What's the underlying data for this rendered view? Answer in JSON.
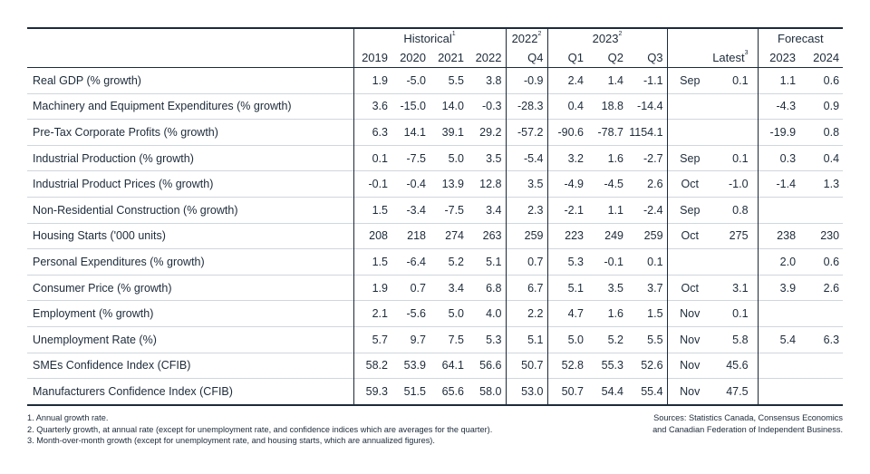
{
  "header": {
    "historical": "Historical",
    "historical_sup": "1",
    "y2022": "2022",
    "y2022_sup": "2",
    "y2023": "2023",
    "y2023_sup": "2",
    "latest": "Latest",
    "latest_sup": "3",
    "forecast": "Forecast",
    "cols": [
      "2019",
      "2020",
      "2021",
      "2022",
      "Q4",
      "Q1",
      "Q2",
      "Q3",
      "2023",
      "2024"
    ]
  },
  "rows": [
    {
      "label": "Real GDP (% growth)",
      "h": [
        "1.9",
        "-5.0",
        "5.5",
        "3.8"
      ],
      "q4": "-0.9",
      "q": [
        "2.4",
        "1.4",
        "-1.1"
      ],
      "lm": "Sep",
      "lv": "0.1",
      "f": [
        "1.1",
        "0.6"
      ]
    },
    {
      "label": "Machinery and Equipment Expenditures (% growth)",
      "h": [
        "3.6",
        "-15.0",
        "14.0",
        "-0.3"
      ],
      "q4": "-28.3",
      "q": [
        "0.4",
        "18.8",
        "-14.4"
      ],
      "lm": "",
      "lv": "",
      "f": [
        "-4.3",
        "0.9"
      ]
    },
    {
      "label": "Pre-Tax Corporate Profits (% growth)",
      "h": [
        "6.3",
        "14.1",
        "39.1",
        "29.2"
      ],
      "q4": "-57.2",
      "q": [
        "-90.6",
        "-78.7",
        "1154.1"
      ],
      "lm": "",
      "lv": "",
      "f": [
        "-19.9",
        "0.8"
      ]
    },
    {
      "label": "Industrial Production (% growth)",
      "h": [
        "0.1",
        "-7.5",
        "5.0",
        "3.5"
      ],
      "q4": "-5.4",
      "q": [
        "3.2",
        "1.6",
        "-2.7"
      ],
      "lm": "Sep",
      "lv": "0.1",
      "f": [
        "0.3",
        "0.4"
      ]
    },
    {
      "label": "Industrial Product Prices (% growth)",
      "h": [
        "-0.1",
        "-0.4",
        "13.9",
        "12.8"
      ],
      "q4": "3.5",
      "q": [
        "-4.9",
        "-4.5",
        "2.6"
      ],
      "lm": "Oct",
      "lv": "-1.0",
      "f": [
        "-1.4",
        "1.3"
      ]
    },
    {
      "label": "Non-Residential Construction (% growth)",
      "h": [
        "1.5",
        "-3.4",
        "-7.5",
        "3.4"
      ],
      "q4": "2.3",
      "q": [
        "-2.1",
        "1.1",
        "-2.4"
      ],
      "lm": "Sep",
      "lv": "0.8",
      "f": [
        "",
        ""
      ]
    },
    {
      "label": "Housing Starts ('000 units)",
      "h": [
        "208",
        "218",
        "274",
        "263"
      ],
      "q4": "259",
      "q": [
        "223",
        "249",
        "259"
      ],
      "lm": "Oct",
      "lv": "275",
      "f": [
        "238",
        "230"
      ]
    },
    {
      "label": "Personal Expenditures (% growth)",
      "h": [
        "1.5",
        "-6.4",
        "5.2",
        "5.1"
      ],
      "q4": "0.7",
      "q": [
        "5.3",
        "-0.1",
        "0.1"
      ],
      "lm": "",
      "lv": "",
      "f": [
        "2.0",
        "0.6"
      ]
    },
    {
      "label": "Consumer Price (% growth)",
      "h": [
        "1.9",
        "0.7",
        "3.4",
        "6.8"
      ],
      "q4": "6.7",
      "q": [
        "5.1",
        "3.5",
        "3.7"
      ],
      "lm": "Oct",
      "lv": "3.1",
      "f": [
        "3.9",
        "2.6"
      ]
    },
    {
      "label": "Employment (% growth)",
      "h": [
        "2.1",
        "-5.6",
        "5.0",
        "4.0"
      ],
      "q4": "2.2",
      "q": [
        "4.7",
        "1.6",
        "1.5"
      ],
      "lm": "Nov",
      "lv": "0.1",
      "f": [
        "",
        ""
      ]
    },
    {
      "label": "Unemployment Rate (%)",
      "h": [
        "5.7",
        "9.7",
        "7.5",
        "5.3"
      ],
      "q4": "5.1",
      "q": [
        "5.0",
        "5.2",
        "5.5"
      ],
      "lm": "Nov",
      "lv": "5.8",
      "f": [
        "5.4",
        "6.3"
      ]
    },
    {
      "label": "SMEs Confidence Index (CFIB)",
      "h": [
        "58.2",
        "53.9",
        "64.1",
        "56.6"
      ],
      "q4": "50.7",
      "q": [
        "52.8",
        "55.3",
        "52.6"
      ],
      "lm": "Nov",
      "lv": "45.6",
      "f": [
        "",
        ""
      ]
    },
    {
      "label": "Manufacturers Confidence Index (CFIB)",
      "h": [
        "59.3",
        "51.5",
        "65.6",
        "58.0"
      ],
      "q4": "53.0",
      "q": [
        "50.7",
        "54.4",
        "55.4"
      ],
      "lm": "Nov",
      "lv": "47.5",
      "f": [
        "",
        ""
      ]
    }
  ],
  "footnotes": [
    "1. Annual growth rate.",
    "2. Quarterly growth, at annual rate (except for unemployment rate, and confidence indices which are averages for the quarter).",
    "3. Month-over-month growth (except for unemployment rate, and housing starts, which are annualized figures)."
  ],
  "sources": [
    "Sources: Statistics Canada, Consensus Economics",
    "and Canadian Federation of Independent Business."
  ]
}
